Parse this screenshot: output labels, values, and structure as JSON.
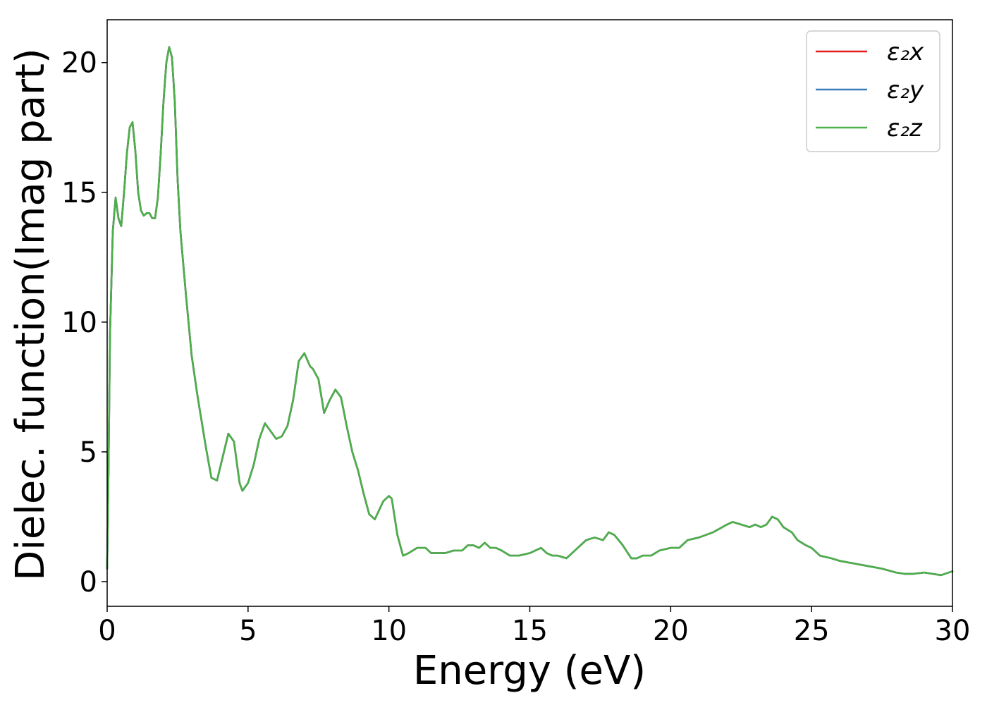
{
  "chart_data": {
    "type": "line",
    "title": "",
    "xlabel": "Energy (eV)",
    "ylabel": "Dielec. function(Imag part)",
    "xlim": [
      0,
      30
    ],
    "ylim": [
      -0.95,
      21.65
    ],
    "xticks": [
      0,
      5,
      10,
      15,
      20,
      25,
      30
    ],
    "yticks": [
      0,
      5,
      10,
      15,
      20
    ],
    "grid": false,
    "legend_position": "top-right",
    "series": [
      {
        "name": "ε₂x",
        "color": "#e41a1c",
        "x": [
          0,
          0.05,
          0.1,
          0.2,
          0.3,
          0.4,
          0.5,
          0.6,
          0.7,
          0.8,
          0.9,
          1.0,
          1.1,
          1.2,
          1.3,
          1.4,
          1.5,
          1.6,
          1.7,
          1.8,
          1.9,
          2.0,
          2.1,
          2.2,
          2.3,
          2.4,
          2.5,
          2.6,
          2.8,
          3.0,
          3.2,
          3.5,
          3.7,
          3.9,
          4.1,
          4.3,
          4.5,
          4.7,
          4.8,
          5.0,
          5.2,
          5.4,
          5.6,
          5.8,
          6.0,
          6.2,
          6.4,
          6.6,
          6.8,
          7.0,
          7.2,
          7.3,
          7.5,
          7.7,
          7.9,
          8.1,
          8.3,
          8.5,
          8.7,
          8.9,
          9.1,
          9.3,
          9.5,
          9.8,
          10.0,
          10.1,
          10.3,
          10.5,
          10.7,
          11.0,
          11.3,
          11.5,
          11.8,
          12.0,
          12.3,
          12.6,
          12.8,
          13.0,
          13.2,
          13.4,
          13.6,
          13.8,
          14.0,
          14.3,
          14.6,
          15.0,
          15.2,
          15.4,
          15.6,
          15.8,
          16.0,
          16.3,
          16.5,
          16.8,
          17.0,
          17.3,
          17.6,
          17.8,
          18.0,
          18.3,
          18.6,
          18.8,
          19.0,
          19.3,
          19.6,
          20.0,
          20.3,
          20.6,
          21.0,
          21.5,
          22.0,
          22.2,
          22.5,
          22.8,
          23.0,
          23.2,
          23.4,
          23.6,
          23.8,
          24.0,
          24.3,
          24.5,
          24.8,
          25.0,
          25.3,
          25.7,
          26.0,
          26.5,
          27.0,
          27.5,
          28.0,
          28.3,
          28.6,
          29.0,
          29.3,
          29.6,
          30.0
        ],
        "y": [
          0.5,
          4.5,
          9.5,
          13.5,
          14.8,
          14.0,
          13.7,
          15.0,
          16.5,
          17.5,
          17.7,
          16.6,
          15.0,
          14.3,
          14.1,
          14.2,
          14.2,
          14.0,
          14.0,
          14.8,
          16.5,
          18.5,
          20.0,
          20.6,
          20.2,
          18.5,
          15.5,
          13.5,
          11.0,
          8.7,
          7.2,
          5.2,
          4.0,
          3.9,
          4.8,
          5.7,
          5.4,
          3.8,
          3.5,
          3.8,
          4.5,
          5.5,
          6.1,
          5.8,
          5.5,
          5.6,
          6.0,
          7.0,
          8.5,
          8.8,
          8.3,
          8.2,
          7.8,
          6.5,
          7.0,
          7.4,
          7.1,
          6.0,
          5.0,
          4.3,
          3.4,
          2.6,
          2.4,
          3.1,
          3.3,
          3.2,
          1.8,
          1.0,
          1.1,
          1.3,
          1.3,
          1.1,
          1.1,
          1.1,
          1.2,
          1.2,
          1.4,
          1.4,
          1.3,
          1.5,
          1.3,
          1.3,
          1.2,
          1.0,
          1.0,
          1.1,
          1.2,
          1.3,
          1.1,
          1.0,
          1.0,
          0.9,
          1.1,
          1.4,
          1.6,
          1.7,
          1.6,
          1.9,
          1.8,
          1.4,
          0.9,
          0.9,
          1.0,
          1.0,
          1.2,
          1.3,
          1.3,
          1.6,
          1.7,
          1.9,
          2.2,
          2.3,
          2.2,
          2.1,
          2.2,
          2.1,
          2.2,
          2.5,
          2.4,
          2.1,
          1.9,
          1.6,
          1.4,
          1.3,
          1.0,
          0.9,
          0.8,
          0.7,
          0.6,
          0.5,
          0.35,
          0.3,
          0.3,
          0.35,
          0.3,
          0.25,
          0.4
        ]
      },
      {
        "name": "ε₂y",
        "color": "#377eb8",
        "x": [
          0,
          0.05,
          0.1,
          0.2,
          0.3,
          0.4,
          0.5,
          0.6,
          0.7,
          0.8,
          0.9,
          1.0,
          1.1,
          1.2,
          1.3,
          1.4,
          1.5,
          1.6,
          1.7,
          1.8,
          1.9,
          2.0,
          2.1,
          2.2,
          2.3,
          2.4,
          2.5,
          2.6,
          2.8,
          3.0,
          3.2,
          3.5,
          3.7,
          3.9,
          4.1,
          4.3,
          4.5,
          4.7,
          4.8,
          5.0,
          5.2,
          5.4,
          5.6,
          5.8,
          6.0,
          6.2,
          6.4,
          6.6,
          6.8,
          7.0,
          7.2,
          7.3,
          7.5,
          7.7,
          7.9,
          8.1,
          8.3,
          8.5,
          8.7,
          8.9,
          9.1,
          9.3,
          9.5,
          9.8,
          10.0,
          10.1,
          10.3,
          10.5,
          10.7,
          11.0,
          11.3,
          11.5,
          11.8,
          12.0,
          12.3,
          12.6,
          12.8,
          13.0,
          13.2,
          13.4,
          13.6,
          13.8,
          14.0,
          14.3,
          14.6,
          15.0,
          15.2,
          15.4,
          15.6,
          15.8,
          16.0,
          16.3,
          16.5,
          16.8,
          17.0,
          17.3,
          17.6,
          17.8,
          18.0,
          18.3,
          18.6,
          18.8,
          19.0,
          19.3,
          19.6,
          20.0,
          20.3,
          20.6,
          21.0,
          21.5,
          22.0,
          22.2,
          22.5,
          22.8,
          23.0,
          23.2,
          23.4,
          23.6,
          23.8,
          24.0,
          24.3,
          24.5,
          24.8,
          25.0,
          25.3,
          25.7,
          26.0,
          26.5,
          27.0,
          27.5,
          28.0,
          28.3,
          28.6,
          29.0,
          29.3,
          29.6,
          30.0
        ],
        "y": [
          0.5,
          4.5,
          9.5,
          13.5,
          14.8,
          14.0,
          13.7,
          15.0,
          16.5,
          17.5,
          17.7,
          16.6,
          15.0,
          14.3,
          14.1,
          14.2,
          14.2,
          14.0,
          14.0,
          14.8,
          16.5,
          18.5,
          20.0,
          20.6,
          20.2,
          18.5,
          15.5,
          13.5,
          11.0,
          8.7,
          7.2,
          5.2,
          4.0,
          3.9,
          4.8,
          5.7,
          5.4,
          3.8,
          3.5,
          3.8,
          4.5,
          5.5,
          6.1,
          5.8,
          5.5,
          5.6,
          6.0,
          7.0,
          8.5,
          8.8,
          8.3,
          8.2,
          7.8,
          6.5,
          7.0,
          7.4,
          7.1,
          6.0,
          5.0,
          4.3,
          3.4,
          2.6,
          2.4,
          3.1,
          3.3,
          3.2,
          1.8,
          1.0,
          1.1,
          1.3,
          1.3,
          1.1,
          1.1,
          1.1,
          1.2,
          1.2,
          1.4,
          1.4,
          1.3,
          1.5,
          1.3,
          1.3,
          1.2,
          1.0,
          1.0,
          1.1,
          1.2,
          1.3,
          1.1,
          1.0,
          1.0,
          0.9,
          1.1,
          1.4,
          1.6,
          1.7,
          1.6,
          1.9,
          1.8,
          1.4,
          0.9,
          0.9,
          1.0,
          1.0,
          1.2,
          1.3,
          1.3,
          1.6,
          1.7,
          1.9,
          2.2,
          2.3,
          2.2,
          2.1,
          2.2,
          2.1,
          2.2,
          2.5,
          2.4,
          2.1,
          1.9,
          1.6,
          1.4,
          1.3,
          1.0,
          0.9,
          0.8,
          0.7,
          0.6,
          0.5,
          0.35,
          0.3,
          0.3,
          0.35,
          0.3,
          0.25,
          0.4
        ]
      },
      {
        "name": "ε₂z",
        "color": "#4daf4a",
        "x": [
          0,
          0.05,
          0.1,
          0.2,
          0.3,
          0.4,
          0.5,
          0.6,
          0.7,
          0.8,
          0.9,
          1.0,
          1.1,
          1.2,
          1.3,
          1.4,
          1.5,
          1.6,
          1.7,
          1.8,
          1.9,
          2.0,
          2.1,
          2.2,
          2.3,
          2.4,
          2.5,
          2.6,
          2.8,
          3.0,
          3.2,
          3.5,
          3.7,
          3.9,
          4.1,
          4.3,
          4.5,
          4.7,
          4.8,
          5.0,
          5.2,
          5.4,
          5.6,
          5.8,
          6.0,
          6.2,
          6.4,
          6.6,
          6.8,
          7.0,
          7.2,
          7.3,
          7.5,
          7.7,
          7.9,
          8.1,
          8.3,
          8.5,
          8.7,
          8.9,
          9.1,
          9.3,
          9.5,
          9.8,
          10.0,
          10.1,
          10.3,
          10.5,
          10.7,
          11.0,
          11.3,
          11.5,
          11.8,
          12.0,
          12.3,
          12.6,
          12.8,
          13.0,
          13.2,
          13.4,
          13.6,
          13.8,
          14.0,
          14.3,
          14.6,
          15.0,
          15.2,
          15.4,
          15.6,
          15.8,
          16.0,
          16.3,
          16.5,
          16.8,
          17.0,
          17.3,
          17.6,
          17.8,
          18.0,
          18.3,
          18.6,
          18.8,
          19.0,
          19.3,
          19.6,
          20.0,
          20.3,
          20.6,
          21.0,
          21.5,
          22.0,
          22.2,
          22.5,
          22.8,
          23.0,
          23.2,
          23.4,
          23.6,
          23.8,
          24.0,
          24.3,
          24.5,
          24.8,
          25.0,
          25.3,
          25.7,
          26.0,
          26.5,
          27.0,
          27.5,
          28.0,
          28.3,
          28.6,
          29.0,
          29.3,
          29.6,
          30.0
        ],
        "y": [
          0.5,
          4.5,
          9.5,
          13.5,
          14.8,
          14.0,
          13.7,
          15.0,
          16.5,
          17.5,
          17.7,
          16.6,
          15.0,
          14.3,
          14.1,
          14.2,
          14.2,
          14.0,
          14.0,
          14.8,
          16.5,
          18.5,
          20.0,
          20.6,
          20.2,
          18.5,
          15.5,
          13.5,
          11.0,
          8.7,
          7.2,
          5.2,
          4.0,
          3.9,
          4.8,
          5.7,
          5.4,
          3.8,
          3.5,
          3.8,
          4.5,
          5.5,
          6.1,
          5.8,
          5.5,
          5.6,
          6.0,
          7.0,
          8.5,
          8.8,
          8.3,
          8.2,
          7.8,
          6.5,
          7.0,
          7.4,
          7.1,
          6.0,
          5.0,
          4.3,
          3.4,
          2.6,
          2.4,
          3.1,
          3.3,
          3.2,
          1.8,
          1.0,
          1.1,
          1.3,
          1.3,
          1.1,
          1.1,
          1.1,
          1.2,
          1.2,
          1.4,
          1.4,
          1.3,
          1.5,
          1.3,
          1.3,
          1.2,
          1.0,
          1.0,
          1.1,
          1.2,
          1.3,
          1.1,
          1.0,
          1.0,
          0.9,
          1.1,
          1.4,
          1.6,
          1.7,
          1.6,
          1.9,
          1.8,
          1.4,
          0.9,
          0.9,
          1.0,
          1.0,
          1.2,
          1.3,
          1.3,
          1.6,
          1.7,
          1.9,
          2.2,
          2.3,
          2.2,
          2.1,
          2.2,
          2.1,
          2.2,
          2.5,
          2.4,
          2.1,
          1.9,
          1.6,
          1.4,
          1.3,
          1.0,
          0.9,
          0.8,
          0.7,
          0.6,
          0.5,
          0.35,
          0.3,
          0.3,
          0.35,
          0.3,
          0.25,
          0.4
        ]
      }
    ]
  }
}
